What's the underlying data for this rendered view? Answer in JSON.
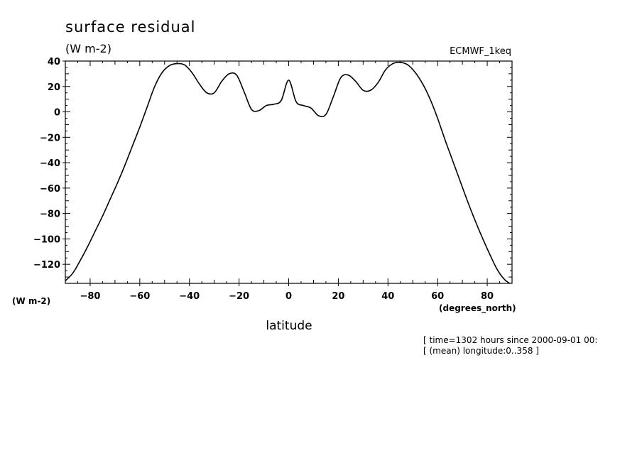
{
  "chart_data": {
    "type": "line",
    "title": "surface residual",
    "units_label": "(W m-2)",
    "dataset_label": "ECMWF_1keq",
    "xlabel": "latitude",
    "x_units_label": "(degrees_north)",
    "y_units_label": "(W m-2)",
    "xlim": [
      -90,
      90
    ],
    "ylim": [
      -135,
      40
    ],
    "x_ticks": [
      -80,
      -60,
      -40,
      -20,
      0,
      20,
      40,
      60,
      80
    ],
    "y_ticks": [
      40,
      20,
      0,
      -20,
      -40,
      -60,
      -80,
      -100,
      -120
    ],
    "grid": false,
    "series": [
      {
        "color": "#000000",
        "x": [
          -90,
          -87,
          -84,
          -81,
          -78,
          -75,
          -72,
          -69,
          -66,
          -63,
          -60,
          -57,
          -54,
          -51,
          -48,
          -45,
          -42,
          -39,
          -36,
          -33,
          -30,
          -27,
          -24,
          -21,
          -18,
          -15,
          -12,
          -9,
          -6,
          -3,
          0,
          3,
          6,
          9,
          12,
          15,
          18,
          21,
          24,
          27,
          30,
          33,
          36,
          39,
          42,
          45,
          48,
          51,
          54,
          57,
          60,
          63,
          66,
          69,
          72,
          75,
          78,
          81,
          84,
          87,
          90
        ],
        "y": [
          -133,
          -127,
          -117,
          -106,
          -94,
          -82,
          -69,
          -56,
          -42,
          -27,
          -12,
          4,
          20,
          31,
          36.5,
          38,
          37,
          31,
          22,
          15,
          15,
          24,
          30,
          29,
          16,
          2,
          1,
          5,
          6,
          9,
          25,
          8,
          5,
          3,
          -3,
          -2,
          12,
          27,
          29,
          24,
          17,
          17,
          23,
          33,
          38,
          39,
          37,
          31,
          22,
          10,
          -5,
          -22,
          -38,
          -54,
          -70,
          -85,
          -99,
          -112,
          -124,
          -132,
          -136
        ]
      }
    ]
  },
  "meta": {
    "time_text": "[ time=1302 hours since 2000-09-01 00:",
    "longitude_text": "[ (mean) longitude:0..358 ]"
  }
}
